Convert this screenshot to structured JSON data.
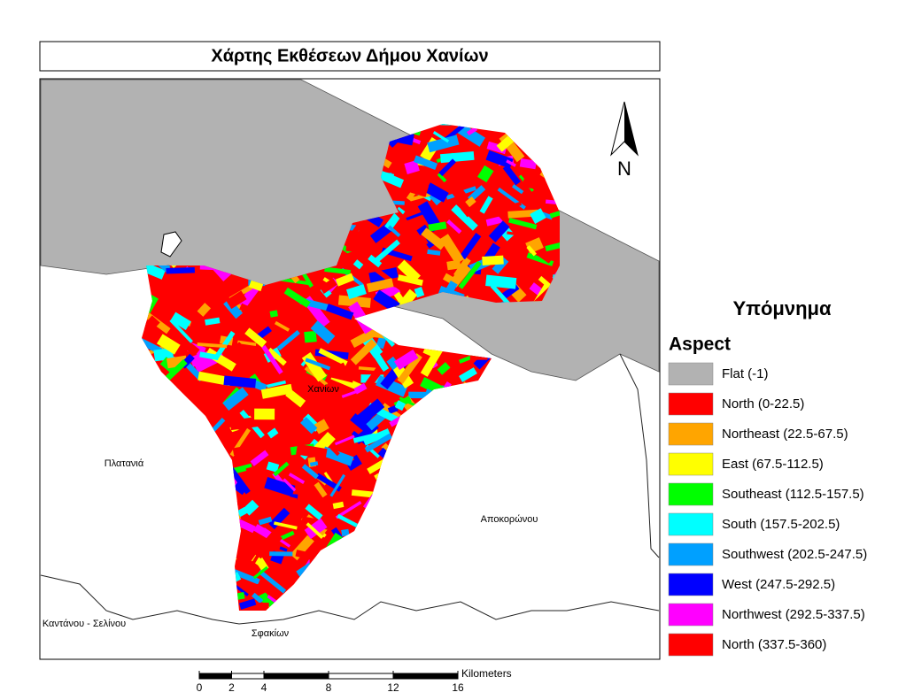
{
  "title": "Χάρτης Εκθέσεων Δήμου Χανίων",
  "legend": {
    "heading": "Υπόμνημα",
    "subheading": "Aspect",
    "items": [
      {
        "label": "Flat (-1)",
        "color": "#b2b2b2"
      },
      {
        "label": "North (0-22.5)",
        "color": "#ff0000"
      },
      {
        "label": "Northeast (22.5-67.5)",
        "color": "#ffa500"
      },
      {
        "label": "East (67.5-112.5)",
        "color": "#ffff00"
      },
      {
        "label": "Southeast (112.5-157.5)",
        "color": "#00ff00"
      },
      {
        "label": "South (157.5-202.5)",
        "color": "#00ffff"
      },
      {
        "label": "Southwest (202.5-247.5)",
        "color": "#00a0ff"
      },
      {
        "label": "West (247.5-292.5)",
        "color": "#0000ff"
      },
      {
        "label": "Northwest (292.5-337.5)",
        "color": "#ff00ff"
      },
      {
        "label": "North (337.5-360)",
        "color": "#ff0000"
      }
    ]
  },
  "places": [
    "Πλατανιά",
    "Χανίων",
    "Αποκορώνου",
    "Καντάνου - Σελίνου",
    "Σφακίων"
  ],
  "north_arrow": "N",
  "scale_bar": {
    "unit": "Kilometers",
    "ticks": [
      0,
      2,
      4,
      8,
      12,
      16
    ]
  }
}
